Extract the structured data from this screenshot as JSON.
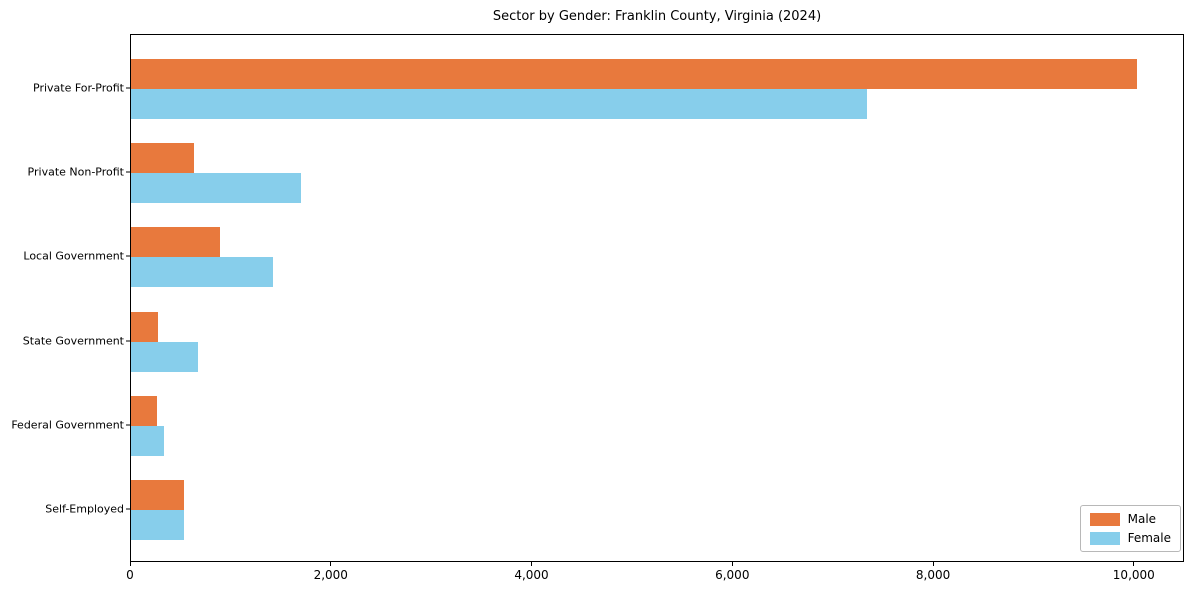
{
  "chart_data": {
    "type": "bar",
    "orientation": "horizontal",
    "title": "Sector by Gender: Franklin County, Virginia (2024)",
    "categories": [
      "Private For-Profit",
      "Private Non-Profit",
      "Local Government",
      "State Government",
      "Federal Government",
      "Self-Employed"
    ],
    "series": [
      {
        "name": "Male",
        "color": "#e8793d",
        "values": [
          10020,
          630,
          890,
          265,
          255,
          530
        ]
      },
      {
        "name": "Female",
        "color": "#87ceeb",
        "values": [
          7330,
          1690,
          1410,
          665,
          330,
          525
        ]
      }
    ],
    "xlabel": "",
    "ylabel": "",
    "xlim": [
      0,
      10500
    ],
    "xticks": [
      0,
      2000,
      4000,
      6000,
      8000,
      10000
    ],
    "xtick_labels": [
      "0",
      "2,000",
      "4,000",
      "6,000",
      "8,000",
      "10,000"
    ],
    "grid": false,
    "legend": {
      "position": "lower right",
      "entries": [
        "Male",
        "Female"
      ]
    }
  }
}
